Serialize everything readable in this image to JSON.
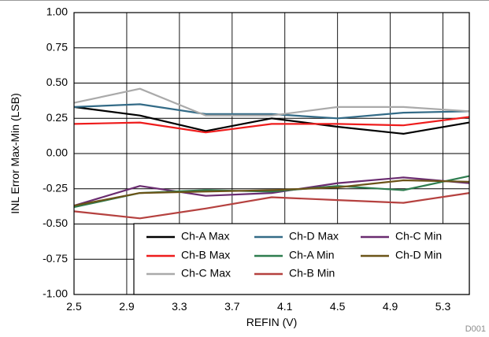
{
  "chart_data": {
    "type": "line",
    "xlabel": "REFIN (V)",
    "ylabel": "INL Error Max-Min (LSB)",
    "x_ticks": [
      "2.5",
      "2.9",
      "3.3",
      "3.7",
      "4.1",
      "4.5",
      "4.9",
      "5.3"
    ],
    "y_ticks": [
      "1.00",
      "0.75",
      "0.50",
      "0.25",
      "0.00",
      "-0.25",
      "-0.50",
      "-0.75",
      "-1.00"
    ],
    "xlim": [
      2.5,
      5.5
    ],
    "ylim": [
      -1.0,
      1.0
    ],
    "grid": true,
    "legend_position": "bottom-right",
    "tag": "D001",
    "x": [
      2.5,
      3.0,
      3.5,
      4.0,
      4.5,
      5.0,
      5.5
    ],
    "series": [
      {
        "name": "Ch-A Max",
        "color": "#000000",
        "values": [
          0.33,
          0.27,
          0.16,
          0.25,
          0.19,
          0.14,
          0.22
        ]
      },
      {
        "name": "Ch-D Max",
        "color": "#336b87",
        "values": [
          0.33,
          0.35,
          0.28,
          0.28,
          0.25,
          0.29,
          0.3
        ]
      },
      {
        "name": "Ch-C Min",
        "color": "#6a2c70",
        "values": [
          -0.37,
          -0.23,
          -0.3,
          -0.28,
          -0.21,
          -0.17,
          -0.21
        ]
      },
      {
        "name": "Ch-B Max",
        "color": "#ee1c1c",
        "values": [
          0.21,
          0.22,
          0.15,
          0.21,
          0.21,
          0.2,
          0.26
        ]
      },
      {
        "name": "Ch-A Min",
        "color": "#2e7d4f",
        "values": [
          -0.38,
          -0.28,
          -0.26,
          -0.27,
          -0.23,
          -0.26,
          -0.16
        ]
      },
      {
        "name": "Ch-D Min",
        "color": "#6b5418",
        "values": [
          -0.37,
          -0.28,
          -0.27,
          -0.26,
          -0.24,
          -0.19,
          -0.2
        ]
      },
      {
        "name": "Ch-C Max",
        "color": "#aaaaaa",
        "values": [
          0.36,
          0.46,
          0.27,
          0.27,
          0.33,
          0.33,
          0.3
        ]
      },
      {
        "name": "Ch-B Min",
        "color": "#b5413f",
        "values": [
          -0.41,
          -0.46,
          -0.39,
          -0.31,
          -0.33,
          -0.35,
          -0.28
        ]
      }
    ]
  }
}
